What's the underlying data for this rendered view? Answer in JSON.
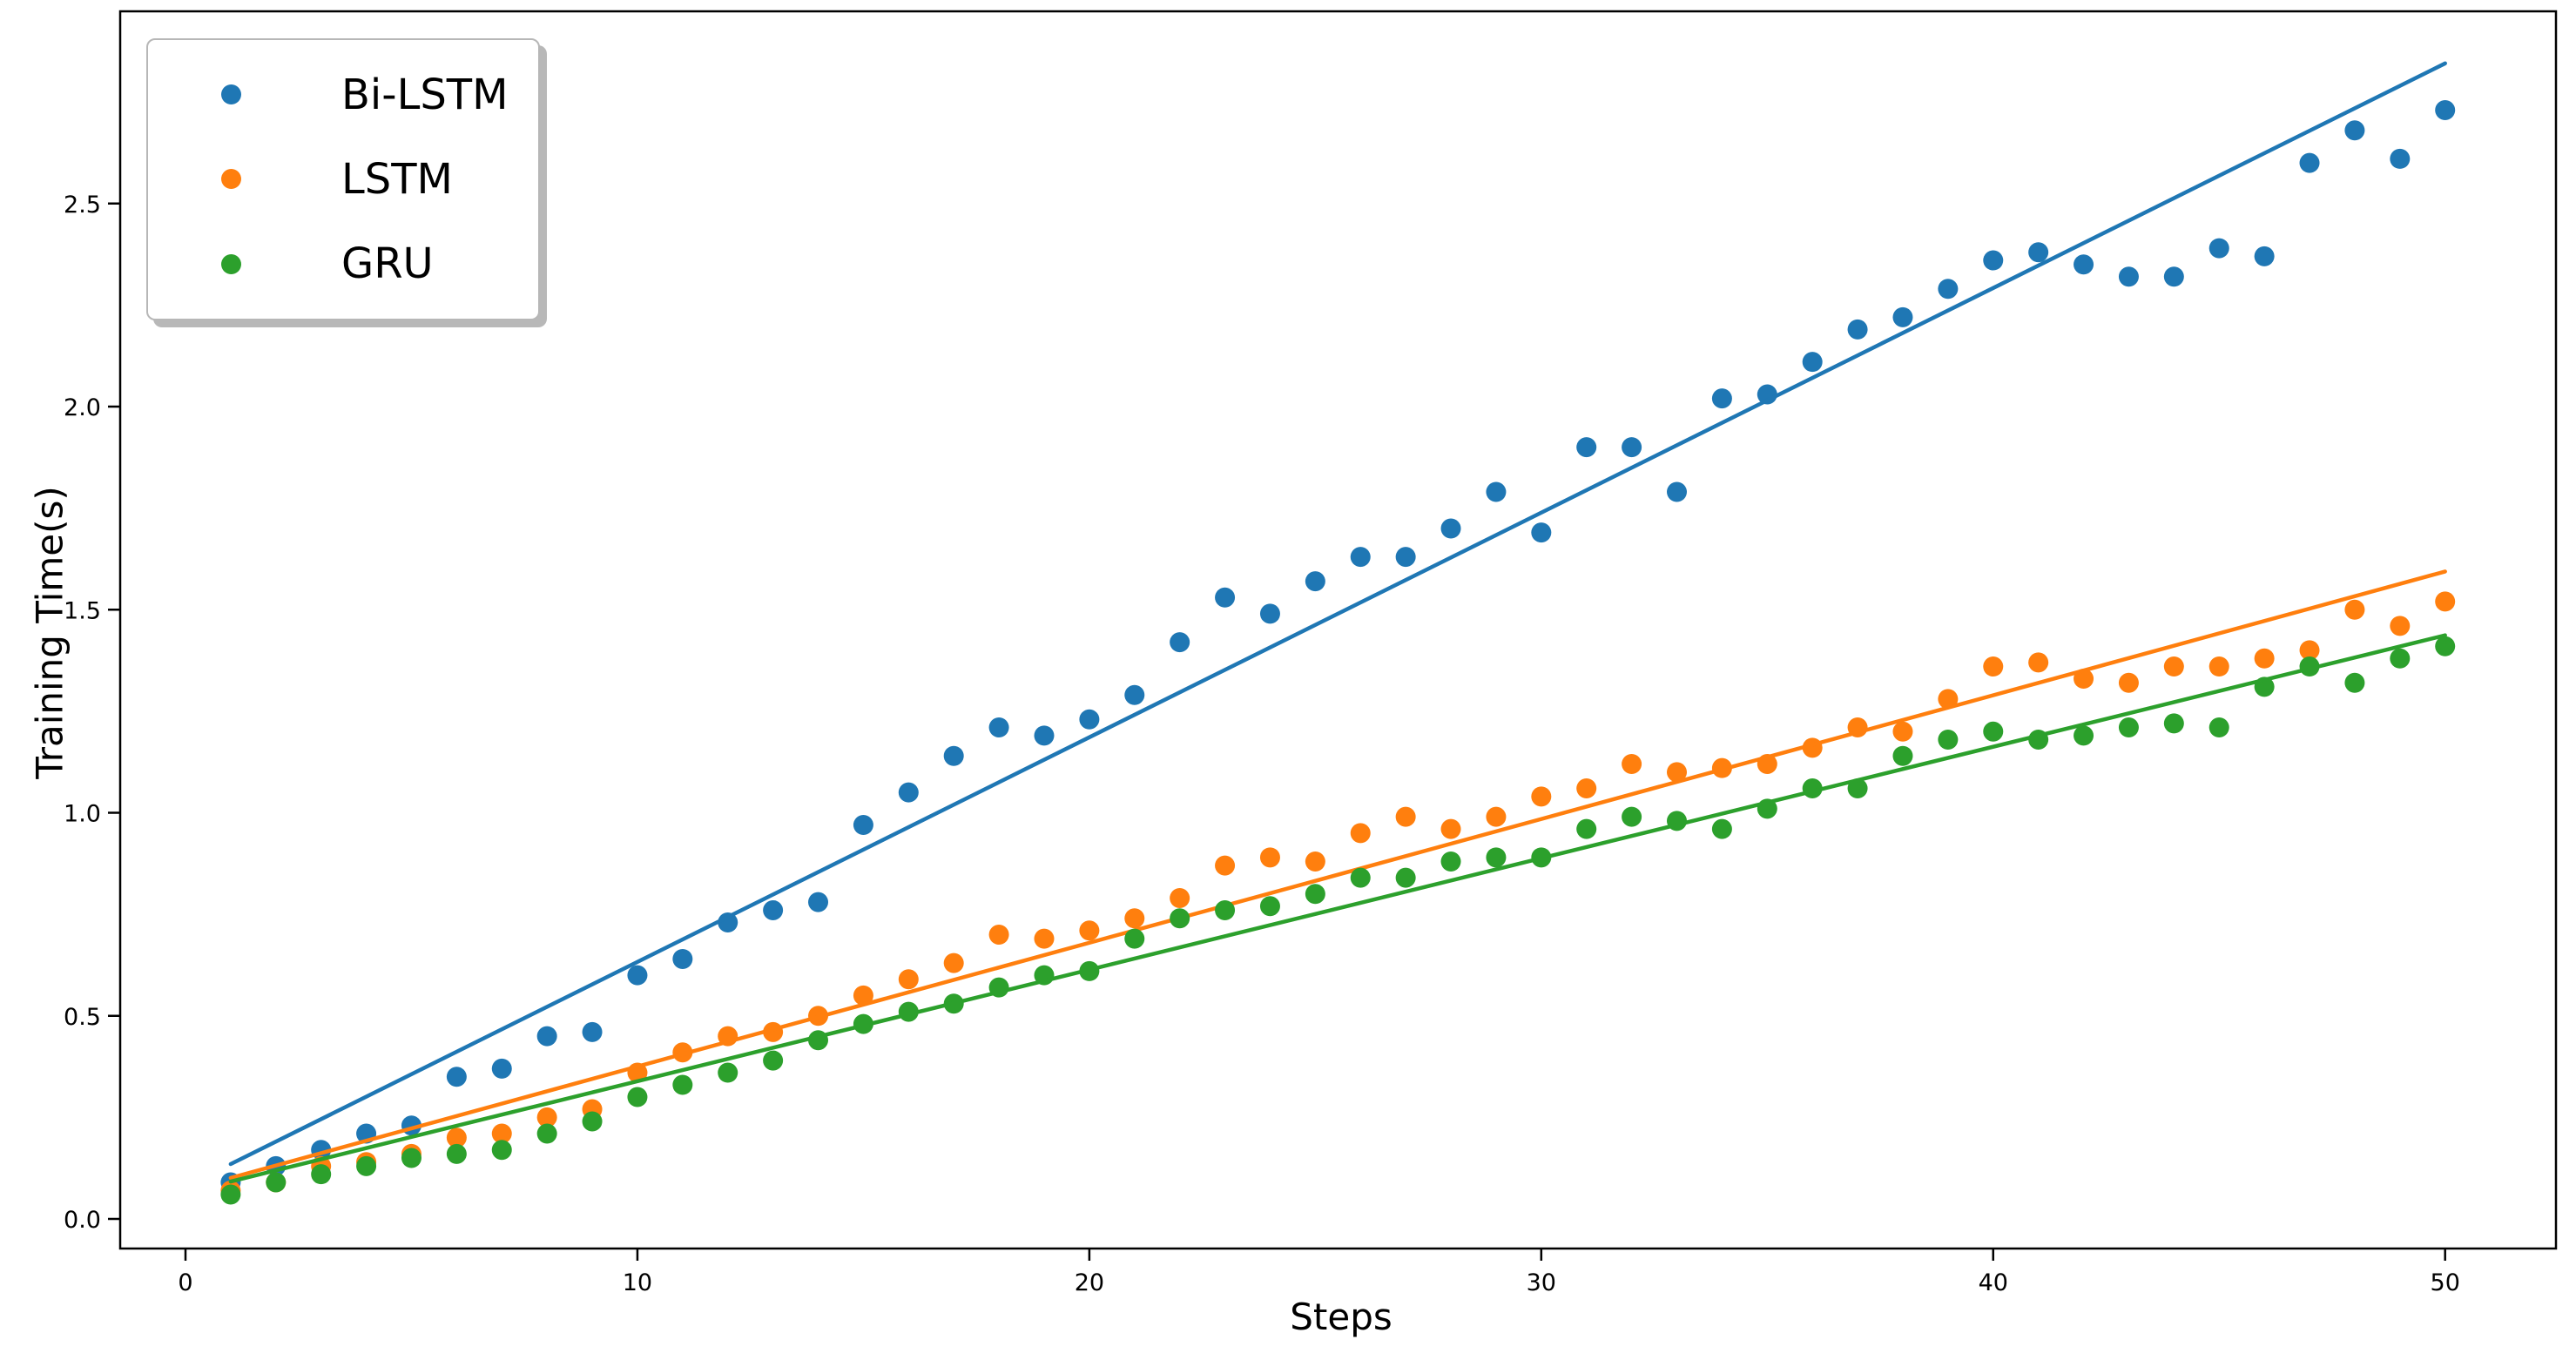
{
  "chart_data": {
    "type": "scatter",
    "title": "",
    "xlabel": "Steps",
    "ylabel": "Training Time(s)",
    "grid": false,
    "legend_position": "upper left",
    "xlim": [
      -1.45,
      52.45
    ],
    "ylim": [
      -0.073,
      2.973
    ],
    "x_ticks": [
      0,
      10,
      20,
      30,
      40,
      50
    ],
    "y_ticks": [
      "0.0",
      "0.5",
      "1.0",
      "1.5",
      "2.0",
      "2.5"
    ],
    "x": [
      1,
      2,
      3,
      4,
      5,
      6,
      7,
      8,
      9,
      10,
      11,
      12,
      13,
      14,
      15,
      16,
      17,
      18,
      19,
      20,
      21,
      22,
      23,
      24,
      25,
      26,
      27,
      28,
      29,
      30,
      31,
      32,
      33,
      34,
      35,
      36,
      37,
      38,
      39,
      40,
      41,
      42,
      43,
      44,
      45,
      46,
      47,
      48,
      49,
      50
    ],
    "series": [
      {
        "name": "Bi-LSTM",
        "color": "#1f77b4",
        "values": [
          0.09,
          0.13,
          0.17,
          0.21,
          0.23,
          0.35,
          0.37,
          0.45,
          0.46,
          0.6,
          0.64,
          0.73,
          0.76,
          0.78,
          0.97,
          1.05,
          1.14,
          1.21,
          1.19,
          1.23,
          1.29,
          1.42,
          1.53,
          1.49,
          1.57,
          1.63,
          1.63,
          1.7,
          1.79,
          1.69,
          1.9,
          1.9,
          1.79,
          2.02,
          2.03,
          2.11,
          2.19,
          2.22,
          2.29,
          2.36,
          2.38,
          2.35,
          2.32,
          2.32,
          2.39,
          2.37,
          2.6,
          2.68,
          2.61,
          2.73
        ],
        "trend_line": {
          "x1": 1,
          "y1": 0.135,
          "x2": 50,
          "y2": 2.845
        }
      },
      {
        "name": "LSTM",
        "color": "#ff7f0e",
        "values": [
          0.07,
          0.09,
          0.13,
          0.14,
          0.16,
          0.2,
          0.21,
          0.25,
          0.27,
          0.36,
          0.41,
          0.45,
          0.46,
          0.5,
          0.55,
          0.59,
          0.63,
          0.7,
          0.69,
          0.71,
          0.74,
          0.79,
          0.87,
          0.89,
          0.88,
          0.95,
          0.99,
          0.96,
          0.99,
          1.04,
          1.06,
          1.12,
          1.1,
          1.11,
          1.12,
          1.16,
          1.21,
          1.2,
          1.28,
          1.36,
          1.37,
          1.33,
          1.32,
          1.36,
          1.36,
          1.38,
          1.4,
          1.5,
          1.46,
          1.52
        ],
        "trend_line": {
          "x1": 1,
          "y1": 0.101,
          "x2": 50,
          "y2": 1.594
        }
      },
      {
        "name": "GRU",
        "color": "#2ca02c",
        "values": [
          0.06,
          0.09,
          0.11,
          0.13,
          0.15,
          0.16,
          0.17,
          0.21,
          0.24,
          0.3,
          0.33,
          0.36,
          0.39,
          0.44,
          0.48,
          0.51,
          0.53,
          0.57,
          0.6,
          0.61,
          0.69,
          0.74,
          0.76,
          0.77,
          0.8,
          0.84,
          0.84,
          0.88,
          0.89,
          0.89,
          0.96,
          0.99,
          0.98,
          0.96,
          1.01,
          1.06,
          1.06,
          1.14,
          1.18,
          1.2,
          1.18,
          1.19,
          1.21,
          1.22,
          1.21,
          1.31,
          1.36,
          1.32,
          1.38,
          1.41
        ],
        "trend_line": {
          "x1": 1,
          "y1": 0.092,
          "x2": 50,
          "y2": 1.437
        }
      }
    ]
  }
}
